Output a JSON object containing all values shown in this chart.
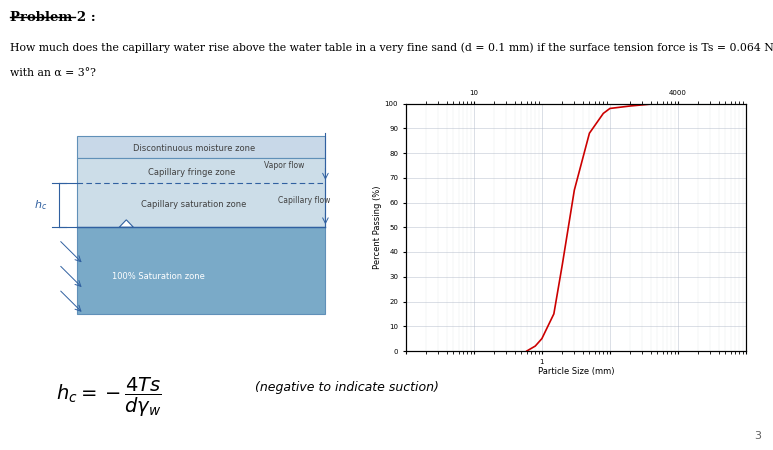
{
  "title": "Problem 2 :",
  "question_line1": "How much does the capillary water rise above the water table in a very fine sand (d = 0.1 mm) if the surface tension force is Ts = 0.064 N/m",
  "question_line2": "with an α = 3°?",
  "formula_note": "(negative to indicate suction)",
  "page_number": "3",
  "diagram_labels": {
    "discontinuous": "Discontinuous moisture zone",
    "vapor": "Vapor flow",
    "capillary_fringe": "Capillary fringe zone",
    "capillary_flow": "Capillary flow",
    "capillary_sat": "Capillary saturation zone",
    "hc_label": "h_c",
    "sat_zone": "100% Saturation zone"
  },
  "graph_xlabel": "Particle Size (mm)",
  "graph_ylabel": "Percent Passing (%)",
  "curve_color": "#cc0000",
  "background_color": "#ffffff",
  "top_band_color": "#c8d8e8",
  "cap_zone_color": "#ccdde8",
  "sat_zone_color": "#7aaac8",
  "border_color": "#6090b8",
  "text_color": "#404040",
  "blue_color": "#3060a0"
}
